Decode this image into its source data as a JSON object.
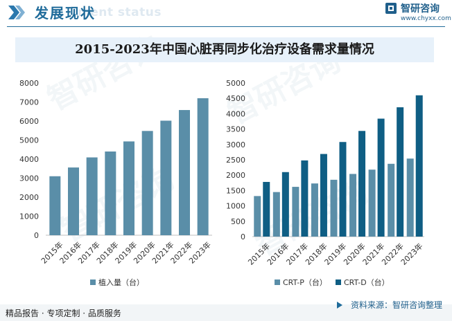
{
  "header": {
    "title": "发展现状",
    "subtitle": "ment status",
    "logo_text": "智研咨询",
    "logo_url": "www.chyxx.com"
  },
  "chart_title": "2015-2023年中国心脏再同步化治疗设备需求量情况",
  "watermark": "智研咨询",
  "footer": {
    "left": "精品报告 · 专项定制 · 品质服务",
    "right": "资料来源：智研咨询整理"
  },
  "colors": {
    "brand": "#1f6b9a",
    "series_light": "#5a8ea8",
    "series_dark": "#0f5e84",
    "title_band": "#e7f1fa"
  },
  "chart_data": [
    {
      "type": "bar",
      "title": "",
      "categories": [
        "2015年",
        "2016年",
        "2017年",
        "2018年",
        "2019年",
        "2020年",
        "2021年",
        "2022年",
        "2023年"
      ],
      "series": [
        {
          "name": "植入量（台）",
          "values": [
            3100,
            3560,
            4090,
            4400,
            4930,
            5480,
            6020,
            6580,
            7200
          ]
        }
      ],
      "ylim": [
        0,
        8000
      ],
      "yticks": [
        "0",
        "1000",
        "2000",
        "3000",
        "4000",
        "5000",
        "6000",
        "7000",
        "8000"
      ],
      "grid": false,
      "legend": "bottom"
    },
    {
      "type": "bar",
      "title": "",
      "categories": [
        "2015年",
        "2016年",
        "2017年",
        "2018年",
        "2019年",
        "2020年",
        "2021年",
        "2022年",
        "2023年"
      ],
      "series": [
        {
          "name": "CRT-P（台）",
          "values": [
            1320,
            1450,
            1620,
            1730,
            1850,
            2040,
            2180,
            2370,
            2540
          ]
        },
        {
          "name": "CRT-D（台）",
          "values": [
            1780,
            2100,
            2480,
            2690,
            3080,
            3440,
            3840,
            4210,
            4600
          ]
        }
      ],
      "ylim": [
        0,
        5000
      ],
      "yticks": [
        "0",
        "500",
        "1000",
        "1500",
        "2000",
        "2500",
        "3000",
        "3500",
        "4000",
        "4500",
        "5000"
      ],
      "grid": false,
      "legend": "bottom"
    }
  ]
}
